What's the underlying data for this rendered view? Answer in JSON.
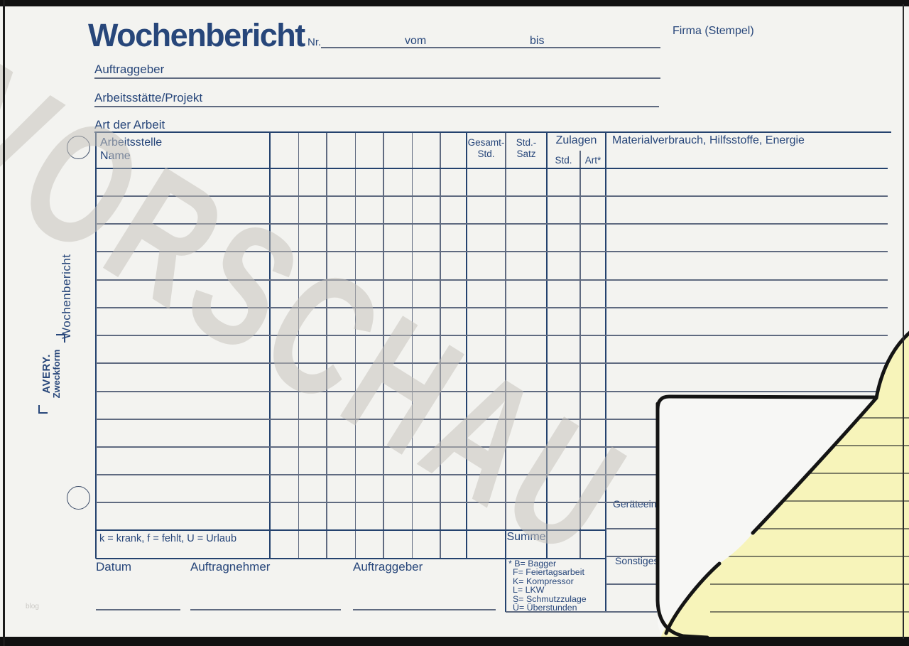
{
  "watermark": {
    "text": "VORSCHAU"
  },
  "photo": {
    "credit": "blog"
  },
  "brand": {
    "name_line1": "AVERY.",
    "name_line2": "Zweckform",
    "vertical_title": "Wochenbericht"
  },
  "header": {
    "title": "Wochenbericht",
    "nr_label": "Nr.",
    "vom_label": "vom",
    "bis_label": "bis",
    "firma_label": "Firma (Stempel)",
    "auftraggeber_label": "Auftraggeber",
    "arbeitsstaette_label": "Arbeitsstätte/Projekt",
    "art_der_arbeit_label": "Art der Arbeit"
  },
  "table": {
    "col_name_line1": "Arbeitsstelle",
    "col_name_line2": "Name",
    "col_gesamt_line1": "Gesamt-",
    "col_gesamt_line2": "Std.",
    "col_satz_line1": "Std.-",
    "col_satz_line2": "Satz",
    "col_zulagen": "Zulagen",
    "col_zulagen_std": "Std.",
    "col_zulagen_art": "Art*",
    "col_material": "Materialverbrauch, Hilfsstoffe, Energie",
    "day_columns": 7,
    "body_rows": 13
  },
  "right_column": {
    "geraete_label": "Geräteeinsatz",
    "sonstiges_label": "Sonstiges"
  },
  "summary_row": {
    "note": "k = krank, f = fehlt, U = Urlaub",
    "summe_label": "Summe"
  },
  "footer": {
    "datum_label": "Datum",
    "auftragnehmer_label": "Auftragnehmer",
    "auftraggeber_label": "Auftraggeber",
    "legend": [
      "* B= Bagger",
      "F= Feiertagsarbeit",
      "K= Kompressor",
      "L= LKW",
      "S= Schmutzzulage",
      "Ü= Überstunden"
    ]
  },
  "colors": {
    "ink": "#27467a",
    "grid_strong": "#24426e",
    "grid_light": "#5f6a80",
    "paper": "#f3f3f0",
    "copy_yellow": "#f7f4ba",
    "watermark_gray": "#c7c3bc",
    "frame_black": "#111111"
  }
}
